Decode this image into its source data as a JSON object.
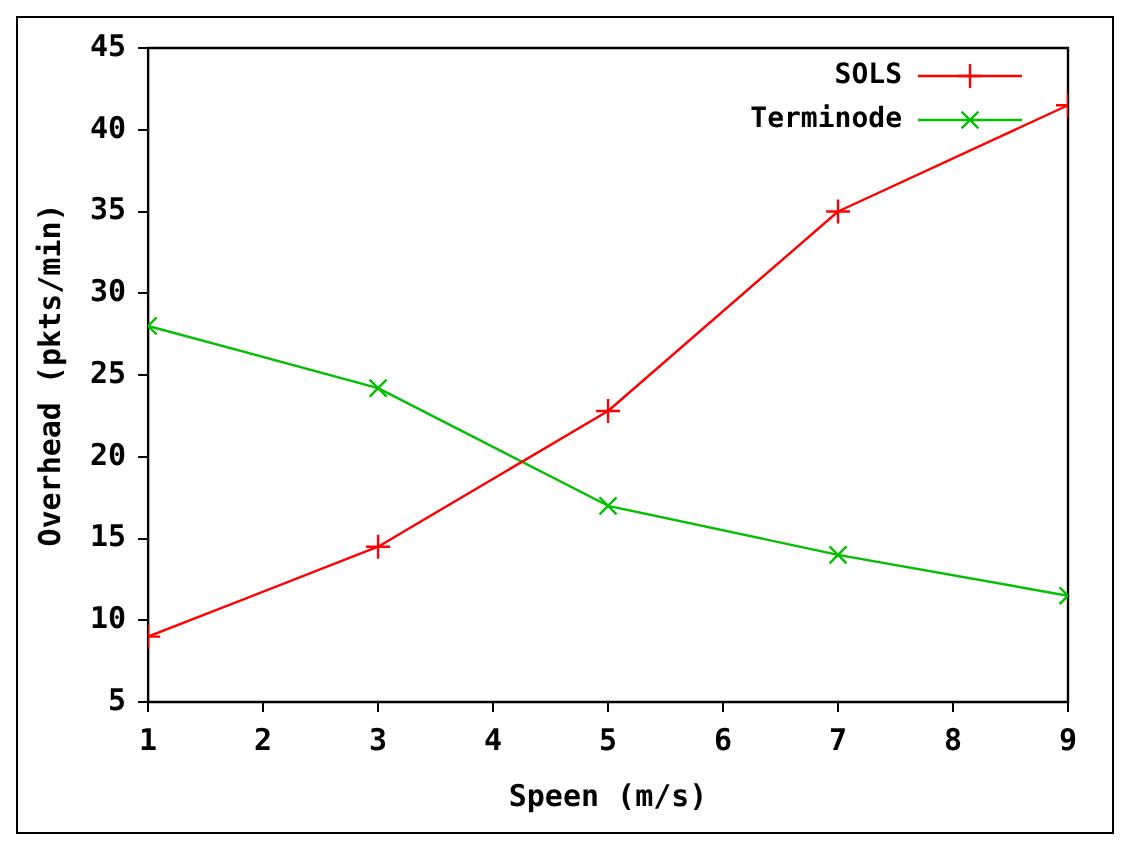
{
  "chart_data": {
    "type": "line",
    "xlabel": "Speen (m/s)",
    "ylabel": "Overhead (pkts/min)",
    "x": [
      1,
      3,
      5,
      7,
      9
    ],
    "series": [
      {
        "name": "SOLS",
        "color": "#ff0000",
        "marker": "cross",
        "values": [
          9,
          14.5,
          22.8,
          35,
          41.5
        ]
      },
      {
        "name": "Terminode",
        "color": "#00c000",
        "marker": "cross",
        "values": [
          28,
          24.2,
          17,
          14,
          11.5
        ]
      }
    ],
    "xlim": [
      1,
      9
    ],
    "xticks": [
      1,
      2,
      3,
      4,
      5,
      6,
      7,
      8,
      9
    ],
    "ylim": [
      5,
      45
    ],
    "yticks": [
      5,
      10,
      15,
      20,
      25,
      30,
      35,
      40,
      45
    ],
    "grid": false,
    "legend": "top right",
    "line_style": "solid"
  }
}
